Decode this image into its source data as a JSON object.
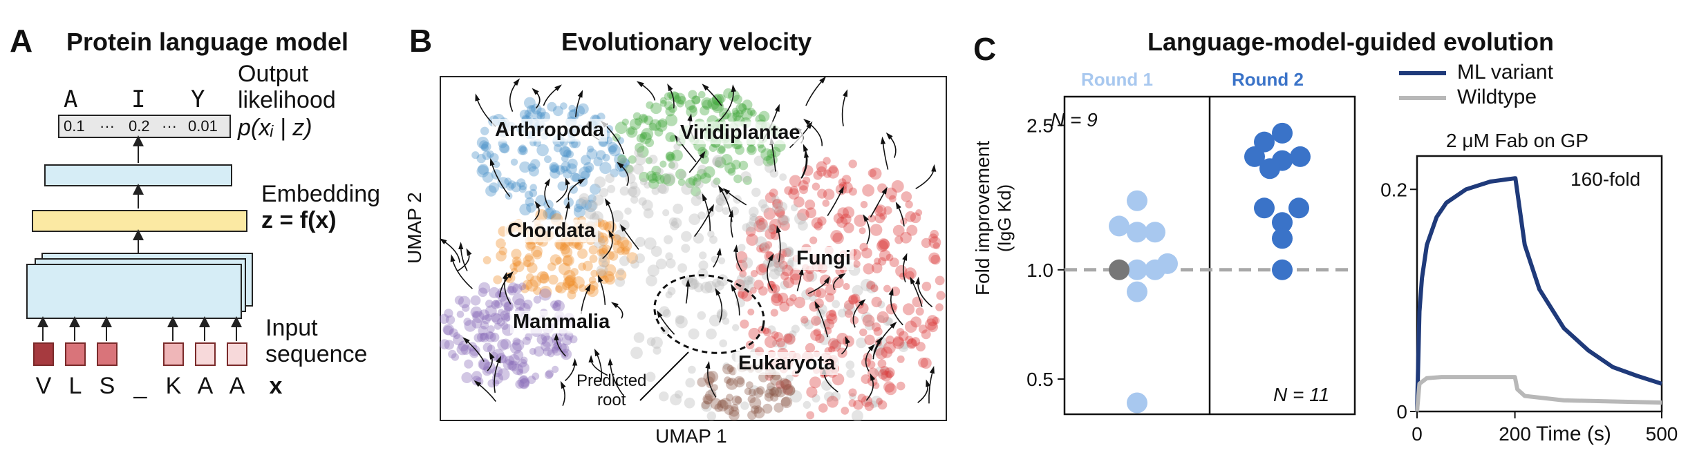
{
  "panel_a": {
    "letter": "A",
    "title": "Protein language model",
    "output_tokens": [
      "A",
      "I",
      "Y"
    ],
    "likelihood_values": [
      "0.1",
      "···",
      "0.2",
      "···",
      "0.01"
    ],
    "output_label_line1": "Output",
    "output_label_line2": "likelihood",
    "output_formula": "p(xᵢ | z)",
    "embedding_label": "Embedding",
    "embedding_formula": "z = f(x)",
    "input_label_line1": "Input",
    "input_label_line2": "sequence",
    "input_tokens": [
      "V",
      "L",
      "S",
      "_",
      "K",
      "A",
      "A"
    ],
    "input_symbol": "x",
    "colors": {
      "embedding_bar": "#fbe9a3",
      "model_box": "#d6edf6",
      "token_dark": "#a63a3f",
      "token_mid": "#d9747a",
      "token_light": "#efb6b8",
      "token_lightest": "#f7d9da"
    }
  },
  "panel_b": {
    "letter": "B",
    "title": "Evolutionary velocity",
    "xlabel": "UMAP 1",
    "ylabel": "UMAP 2",
    "clusters": [
      "Arthropoda",
      "Viridiplantae",
      "Chordata",
      "Fungi",
      "Mammalia",
      "Eukaryota"
    ],
    "annotation_line1": "Predicted",
    "annotation_line2": "root",
    "colors": {
      "arthropoda": "#4a90c8",
      "viridiplantae": "#3fa53a",
      "chordata": "#ef8f2a",
      "fungi": "#d93a3a",
      "mammalia": "#8a6bb8",
      "eukaryota": "#8b5a4a",
      "other": "#b8b8b8"
    }
  },
  "panel_c": {
    "letter": "C",
    "title": "Language-model-guided evolution",
    "strip": {
      "round1_label": "Round 1",
      "round2_label": "Round 2",
      "n1_label": "N = 9",
      "n2_label": "N = 11",
      "ylabel_line1": "Fold improvement",
      "ylabel_line2": "(IgG Kd)",
      "yticks": [
        "2.5",
        "1.0",
        "0.5"
      ],
      "colors": {
        "round1": "#a8c8ef",
        "round2": "#3a73c8",
        "wildtype_point": "#777777",
        "baseline": "#a8a8a8"
      }
    },
    "sensorgram": {
      "legend_ml": "ML variant",
      "legend_wt": "Wildtype",
      "title": "2 μM Fab on GP",
      "annotation": "160-fold",
      "yticks": [
        "0.2",
        "0"
      ],
      "xticks": [
        "0",
        "200",
        "500"
      ],
      "xlabel": "Time (s)",
      "colors": {
        "ml": "#1f3a7a",
        "wt": "#b8b8b8"
      }
    }
  },
  "chart_data": [
    {
      "type": "scatter",
      "title": "",
      "ylabel": "Fold improvement (IgG Kd)",
      "yscale": "log",
      "ylim": [
        0.4,
        3.0
      ],
      "reference_line": 1.0,
      "series": [
        {
          "name": "Round 1",
          "x": [
            1,
            1,
            1,
            1,
            1,
            1,
            1,
            1,
            1,
            1
          ],
          "y": [
            1.55,
            1.32,
            1.27,
            1.27,
            1.0,
            1.0,
            1.0,
            1.04,
            0.87,
            0.43
          ]
        },
        {
          "name": "Round 2",
          "x": [
            2,
            2,
            2,
            2,
            2,
            2,
            2,
            2,
            2,
            2,
            2
          ],
          "y": [
            2.38,
            2.25,
            2.05,
            2.05,
            2.0,
            1.9,
            1.48,
            1.48,
            1.35,
            1.22,
            1.0
          ]
        }
      ]
    },
    {
      "type": "line",
      "title": "2 μM Fab on GP",
      "xlabel": "Time (s)",
      "xlim": [
        0,
        500
      ],
      "ylim": [
        0,
        0.23
      ],
      "series": [
        {
          "name": "ML variant",
          "x": [
            0,
            5,
            10,
            20,
            40,
            60,
            100,
            150,
            200,
            201,
            220,
            250,
            300,
            350,
            400,
            450,
            500
          ],
          "y": [
            0,
            0.09,
            0.12,
            0.15,
            0.175,
            0.188,
            0.2,
            0.207,
            0.21,
            0.21,
            0.15,
            0.11,
            0.075,
            0.055,
            0.04,
            0.032,
            0.025
          ]
        },
        {
          "name": "Wildtype",
          "x": [
            0,
            5,
            20,
            50,
            100,
            150,
            200,
            205,
            220,
            300,
            400,
            500
          ],
          "y": [
            0,
            0.025,
            0.03,
            0.031,
            0.031,
            0.031,
            0.031,
            0.02,
            0.014,
            0.01,
            0.009,
            0.008
          ]
        }
      ]
    }
  ]
}
